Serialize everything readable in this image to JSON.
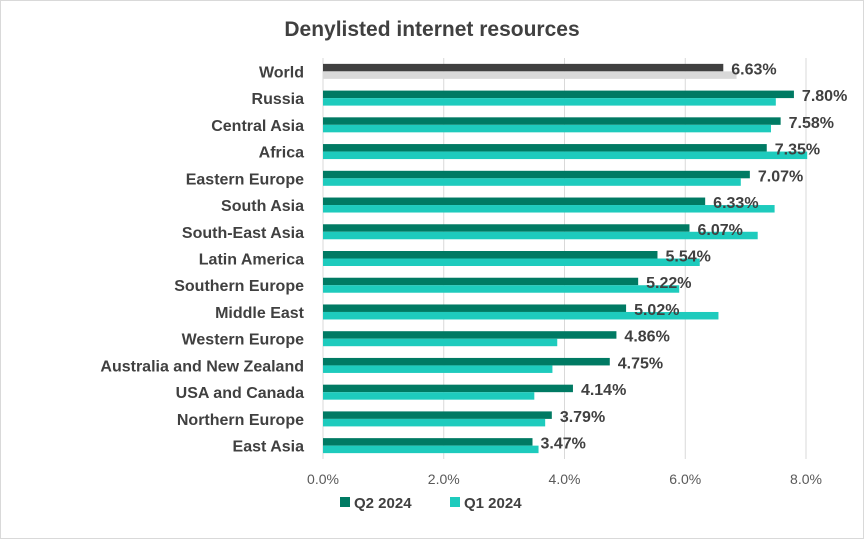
{
  "chart_data": {
    "type": "bar",
    "orientation": "horizontal",
    "title": "Denylisted internet resources",
    "categories": [
      "World",
      "Russia",
      "Central Asia",
      "Africa",
      "Eastern Europe",
      "South Asia",
      "South-East Asia",
      "Latin America",
      "Southern Europe",
      "Middle East",
      "Western Europe",
      "Australia and New Zealand",
      "USA and Canada",
      "Northern Europe",
      "East Asia"
    ],
    "series": [
      {
        "name": "Q2 2024",
        "color": "#007a63",
        "world_color": "#404040",
        "values": [
          6.63,
          7.8,
          7.58,
          7.35,
          7.07,
          6.33,
          6.07,
          5.54,
          5.22,
          5.02,
          4.86,
          4.75,
          4.14,
          3.79,
          3.47
        ]
      },
      {
        "name": "Q1 2024",
        "color": "#1ecbbd",
        "world_color": "#d9d9d9",
        "values": [
          6.85,
          7.5,
          7.42,
          8.02,
          6.92,
          7.48,
          7.2,
          6.24,
          5.9,
          6.55,
          3.88,
          3.8,
          3.5,
          3.68,
          3.57
        ]
      }
    ],
    "data_labels": [
      "6.63%",
      "7.80%",
      "7.58%",
      "7.35%",
      "7.07%",
      "6.33%",
      "6.07%",
      "5.54%",
      "5.22%",
      "5.02%",
      "4.86%",
      "4.75%",
      "4.14%",
      "3.79%",
      "3.47%"
    ],
    "xlim": [
      0,
      8
    ],
    "xticks": [
      0,
      2,
      4,
      6,
      8
    ],
    "xtick_labels": [
      "0.0%",
      "2.0%",
      "4.0%",
      "6.0%",
      "8.0%"
    ],
    "grid": true,
    "legend_position": "bottom"
  }
}
